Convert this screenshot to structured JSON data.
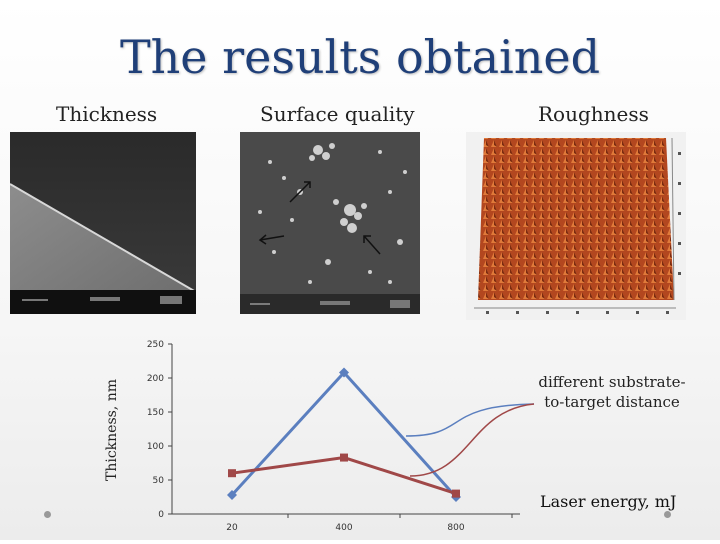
{
  "slide": {
    "title": "The results obtained",
    "subtitles": {
      "thickness": "Thickness",
      "surface": "Surface quality",
      "roughness": "Roughness"
    }
  },
  "images": {
    "thickness_icon": "sem-cross-section-image",
    "surface_icon": "sem-surface-image",
    "roughness_icon": "afm-3d-roughness-image"
  },
  "annotation": "different substrate-to-target distance",
  "chart_data": {
    "type": "line",
    "categories": [
      "20",
      "400",
      "800"
    ],
    "series": [
      {
        "color": "#5b7fbf",
        "values": [
          28,
          208,
          25
        ]
      },
      {
        "color": "#a04848",
        "values": [
          60,
          83,
          30
        ]
      }
    ],
    "ylabel": "Thickness, nm",
    "xlabel": "Laser energy, mJ",
    "ylim": [
      0,
      250
    ],
    "yticks": [
      "0",
      "50",
      "100",
      "150",
      "200",
      "250"
    ],
    "grid": false
  },
  "colors": {
    "title": "#1f3f78",
    "blue_series": "#5b7fbf",
    "red_series": "#a04848"
  }
}
